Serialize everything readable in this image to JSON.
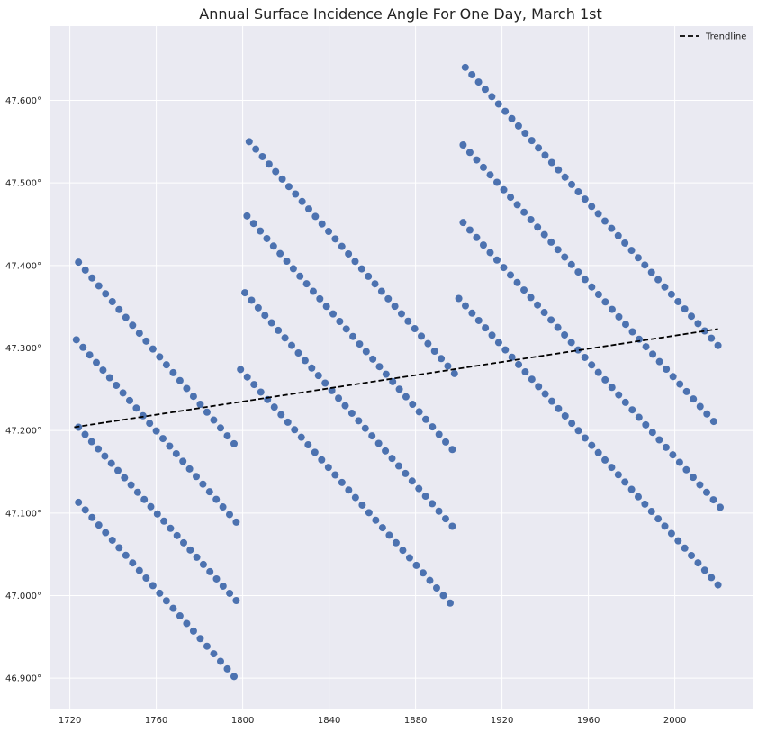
{
  "chart_data": {
    "type": "scatter",
    "title": "Annual Surface Incidence Angle For One Day, March 1st",
    "xlabel": "",
    "ylabel": "",
    "xlim": [
      1711,
      2036
    ],
    "ylim": [
      46.862,
      47.69
    ],
    "x_ticks": [
      1720,
      1760,
      1800,
      1840,
      1880,
      1920,
      1960,
      2000
    ],
    "x_tick_labels": [
      "1720",
      "1760",
      "1800",
      "1840",
      "1880",
      "1920",
      "1960",
      "2000"
    ],
    "y_ticks": [
      46.9,
      47.0,
      47.1,
      47.2,
      47.3,
      47.4,
      47.5,
      47.6
    ],
    "y_tick_labels": [
      "46.900°",
      "47.000°",
      "47.100°",
      "47.200°",
      "47.300°",
      "47.400°",
      "47.500°",
      "47.600°"
    ],
    "grid": true,
    "legend": {
      "position": "top-right",
      "entries": [
        {
          "label": "Trendline",
          "style": "dashed",
          "color": "#000000"
        }
      ]
    },
    "point_color": "#4c72b0",
    "plot_background": "#eaeaf2",
    "grid_color": "#ffffff",
    "trendline": {
      "x": [
        1722,
        2020
      ],
      "y": [
        47.204,
        47.323
      ]
    },
    "series": [
      {
        "values": [
          {
            "x_start": 1724,
            "x_end": 1796,
            "y_start": 47.404,
            "y_end": 47.184
          },
          {
            "x_start": 1723,
            "x_end": 1797,
            "y_start": 47.31,
            "y_end": 47.089
          },
          {
            "x_start": 1724,
            "x_end": 1797,
            "y_start": 47.204,
            "y_end": 46.994
          },
          {
            "x_start": 1724,
            "x_end": 1796,
            "y_start": 47.113,
            "y_end": 46.902
          }
        ]
      },
      {
        "values": [
          {
            "x_start": 1803,
            "x_end": 1898,
            "y_start": 47.55,
            "y_end": 47.269
          },
          {
            "x_start": 1802,
            "x_end": 1897,
            "y_start": 47.46,
            "y_end": 47.177
          },
          {
            "x_start": 1801,
            "x_end": 1897,
            "y_start": 47.367,
            "y_end": 47.084
          },
          {
            "x_start": 1799,
            "x_end": 1896,
            "y_start": 47.274,
            "y_end": 46.991
          }
        ]
      },
      {
        "values": [
          {
            "x_start": 1903,
            "x_end": 2020,
            "y_start": 47.64,
            "y_end": 47.303
          },
          {
            "x_start": 1902,
            "x_end": 2018,
            "y_start": 47.546,
            "y_end": 47.211
          },
          {
            "x_start": 1902,
            "x_end": 2021,
            "y_start": 47.452,
            "y_end": 47.107
          },
          {
            "x_start": 1900,
            "x_end": 2020,
            "y_start": 47.36,
            "y_end": 47.013
          }
        ]
      }
    ]
  }
}
